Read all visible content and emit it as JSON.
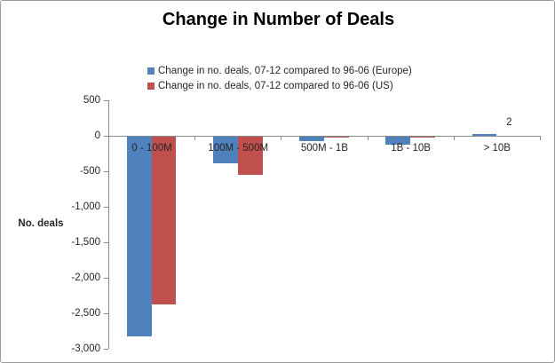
{
  "chart_data": {
    "type": "bar",
    "title": "Change in Number of Deals",
    "categories": [
      "0 - 100M",
      "100M - 500M",
      "500M - 1B",
      "1B - 10B",
      "> 10B"
    ],
    "series": [
      {
        "name": "Change in no. deals, 07-12 compared to 96-06 (Europe)",
        "color": "#4F81BD",
        "values": [
          -2830,
          -390,
          -75,
          -125,
          30
        ]
      },
      {
        "name": "Change in no. deals, 07-12 compared to 96-06 (US)",
        "color": "#C0504D",
        "values": [
          -2370,
          -550,
          -25,
          -25,
          2
        ]
      }
    ],
    "data_labels": [
      {
        "series_index": 1,
        "category_index": 4,
        "text": "2"
      }
    ],
    "xlabel": "",
    "ylabel": "No. deals",
    "ylim": [
      -3000,
      500
    ],
    "yticks": [
      500,
      0,
      -500,
      -1000,
      -1500,
      -2000,
      -2500,
      -3000
    ],
    "ytick_labels": [
      "500",
      "0",
      "-500",
      "-1,000",
      "-1,500",
      "-2,000",
      "-2,500",
      "-3,000"
    ],
    "grid": "off",
    "legend_position": "top-center"
  }
}
